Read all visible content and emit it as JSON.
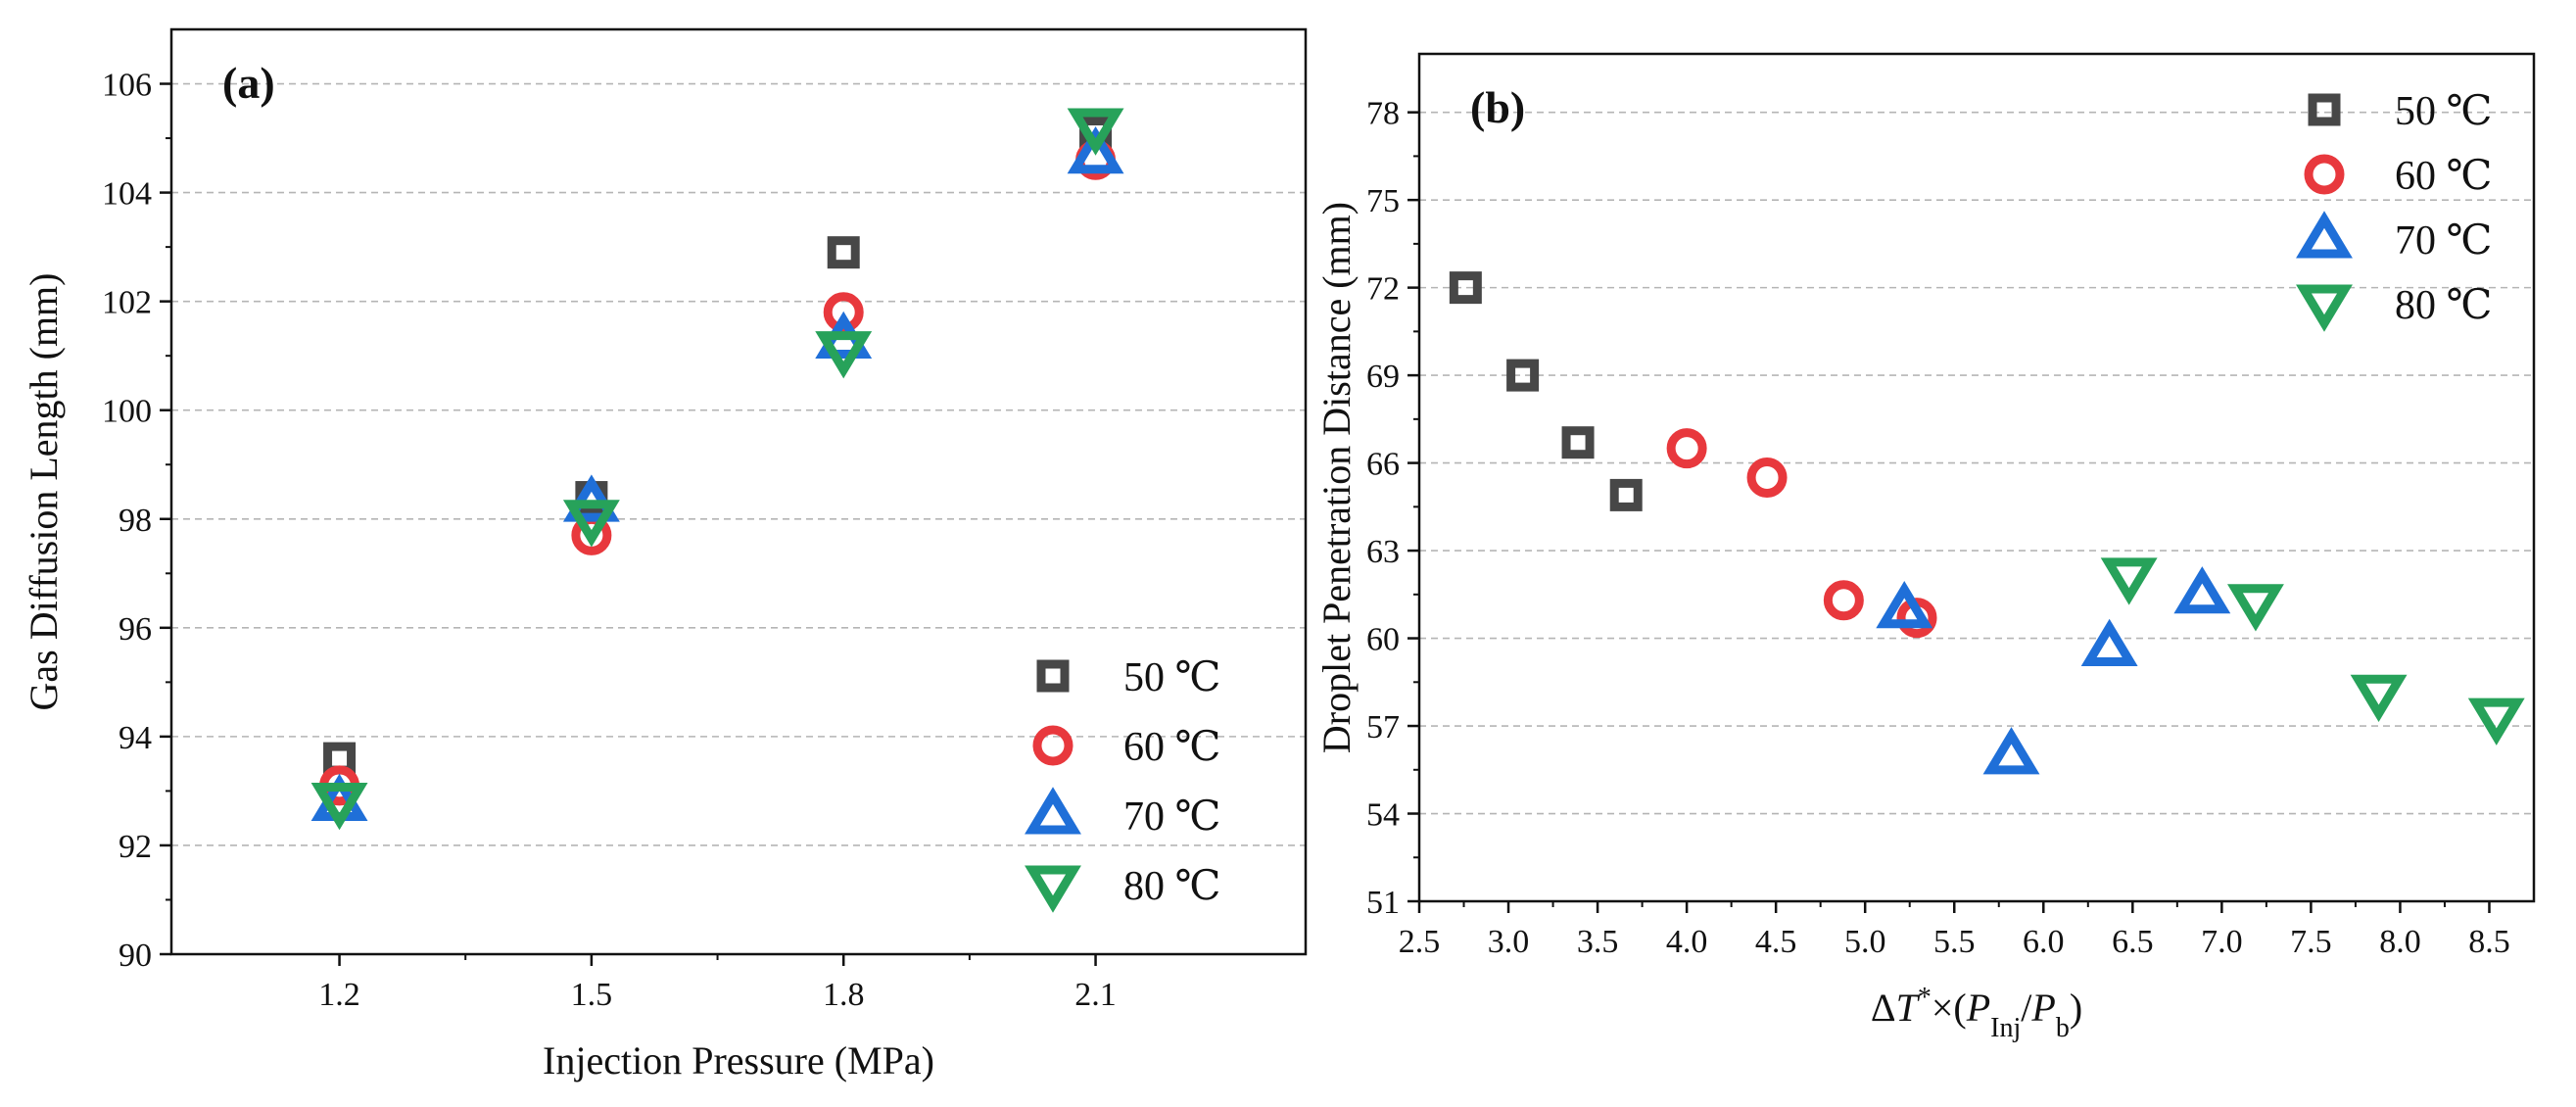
{
  "chart_data": [
    {
      "type": "scatter",
      "panel_label": "(a)",
      "xlabel": "Injection Pressure (MPa)",
      "ylabel": "Gas Diffusion Length (mm)",
      "xlim": [
        1.0,
        2.35
      ],
      "ylim": [
        90,
        107
      ],
      "x_ticks": [
        "1.2",
        "1.5",
        "1.8",
        "2.1"
      ],
      "y_ticks": [
        "90",
        "92",
        "94",
        "96",
        "98",
        "100",
        "102",
        "104",
        "106"
      ],
      "grid": "horizontal-dashed",
      "legend_position": "bottom-right",
      "series": [
        {
          "name": "50 ℃",
          "marker": "square",
          "color": "#474747",
          "x": [
            1.2,
            1.5,
            1.8,
            2.1
          ],
          "y": [
            93.6,
            98.4,
            102.9,
            105.1
          ]
        },
        {
          "name": "60 ℃",
          "marker": "circle",
          "color": "#e8383d",
          "x": [
            1.2,
            1.5,
            1.8,
            2.1
          ],
          "y": [
            93.1,
            97.7,
            101.8,
            104.6
          ]
        },
        {
          "name": "70 ℃",
          "marker": "triangle-up",
          "color": "#1f6fd8",
          "x": [
            1.2,
            1.5,
            1.8,
            2.1
          ],
          "y": [
            92.8,
            98.3,
            101.3,
            104.7
          ]
        },
        {
          "name": "80 ℃",
          "marker": "triangle-down",
          "color": "#27a25a",
          "x": [
            1.2,
            1.5,
            1.8,
            2.1
          ],
          "y": [
            92.8,
            98.0,
            101.1,
            105.2
          ]
        }
      ]
    },
    {
      "type": "scatter",
      "panel_label": "(b)",
      "xlabel": "ΔT*×(PInj/Pb)",
      "xlabel_parts": {
        "delta": "Δ",
        "t": "T",
        "star": "*",
        "times": "×(",
        "p1": "P",
        "sub1": "Inj",
        "slash": "/",
        "p2": "P",
        "sub2": "b",
        "close": ")"
      },
      "ylabel": "Droplet Penetration Distance (mm)",
      "xlim": [
        2.5,
        8.75
      ],
      "ylim": [
        51,
        80
      ],
      "x_ticks": [
        "2.5",
        "3.0",
        "3.5",
        "4.0",
        "4.5",
        "5.0",
        "5.5",
        "6.0",
        "6.5",
        "7.0",
        "7.5",
        "8.0",
        "8.5"
      ],
      "y_ticks": [
        "51",
        "54",
        "57",
        "60",
        "63",
        "66",
        "69",
        "72",
        "75",
        "78"
      ],
      "grid": "horizontal-dashed",
      "legend_position": "top-right",
      "series": [
        {
          "name": "50 ℃",
          "marker": "square",
          "color": "#474747",
          "x": [
            2.76,
            3.08,
            3.39,
            3.66
          ],
          "y": [
            72.0,
            69.0,
            66.7,
            64.9
          ]
        },
        {
          "name": "60 ℃",
          "marker": "circle",
          "color": "#e8383d",
          "x": [
            4.0,
            4.45,
            4.88,
            5.29
          ],
          "y": [
            66.5,
            65.5,
            61.3,
            60.7
          ]
        },
        {
          "name": "70 ℃",
          "marker": "triangle-up",
          "color": "#1f6fd8",
          "x": [
            5.22,
            5.82,
            6.37,
            6.89
          ],
          "y": [
            61.0,
            56.0,
            59.7,
            61.5
          ]
        },
        {
          "name": "80 ℃",
          "marker": "triangle-down",
          "color": "#27a25a",
          "x": [
            6.48,
            7.19,
            7.88,
            8.54
          ],
          "y": [
            62.1,
            61.2,
            58.1,
            57.3
          ]
        }
      ]
    }
  ]
}
